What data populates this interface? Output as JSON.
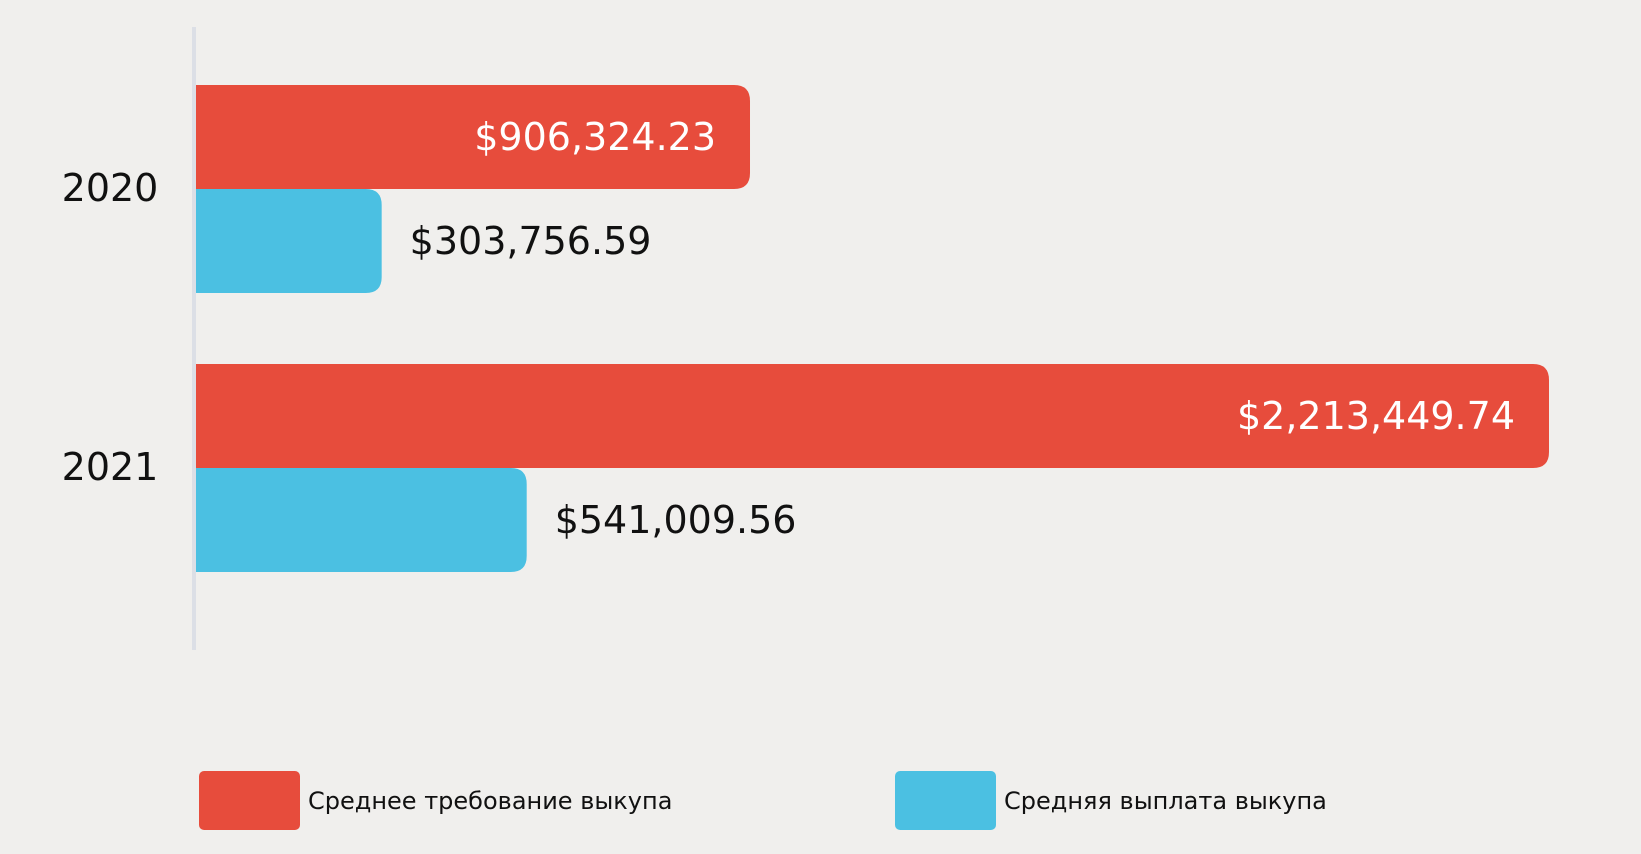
{
  "chart_data": {
    "type": "bar",
    "orientation": "horizontal",
    "categories": [
      "2020",
      "2021"
    ],
    "series": [
      {
        "name": "Среднее требование выкупа",
        "values": [
          906324.23,
          2213449.74
        ],
        "labels": [
          "$906,324.23",
          "$2,213,449.74"
        ],
        "color": "#e74c3c"
      },
      {
        "name": "Средняя выплата выкупа",
        "values": [
          303756.59,
          541009.56
        ],
        "labels": [
          "$303,756.59",
          "$541,009.56"
        ],
        "color": "#4bc0e2"
      }
    ],
    "xlim": [
      0,
      2213449.74
    ],
    "grid": false,
    "legend_position": "bottom"
  }
}
